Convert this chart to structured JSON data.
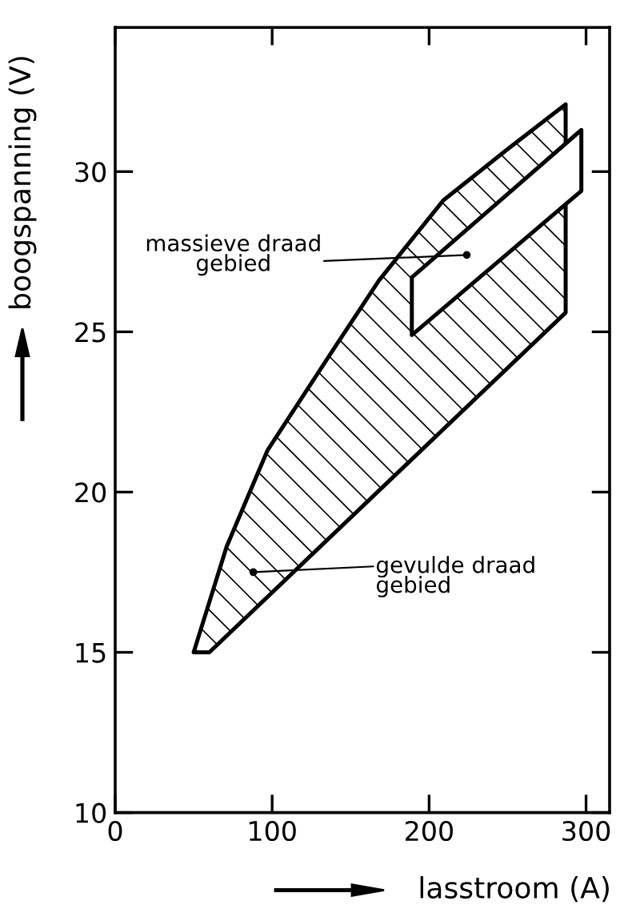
{
  "chart_data": {
    "type": "area",
    "xlabel": "lasstroom (A)",
    "ylabel": "boogspanning (V)",
    "xlim": [
      0,
      315
    ],
    "ylim": [
      10,
      34.5
    ],
    "xticks": [
      0,
      100,
      200,
      300
    ],
    "yticks": [
      10,
      15,
      20,
      25,
      30
    ],
    "grid": false,
    "legend": false,
    "series": [
      {
        "x": [
          50,
          60,
          287,
          287,
          250,
          209,
          168,
          141,
          97,
          71,
          50
        ],
        "values": [
          15,
          15,
          25.6,
          32.1,
          30.7,
          29.1,
          26.6,
          24.6,
          21.3,
          18.3,
          15
        ],
        "color": "#000000"
      },
      {
        "x": [
          189,
          297,
          297,
          189,
          189
        ],
        "values": [
          24.9,
          29.4,
          31.3,
          26.7,
          24.9
        ],
        "color": "#000000"
      }
    ],
    "annotations": [
      {
        "text": "massieve draad\ngebied",
        "x": 224,
        "y": 27.4
      },
      {
        "text": "gevulde draad\ngebied",
        "x": 88,
        "y": 17.5
      }
    ]
  }
}
